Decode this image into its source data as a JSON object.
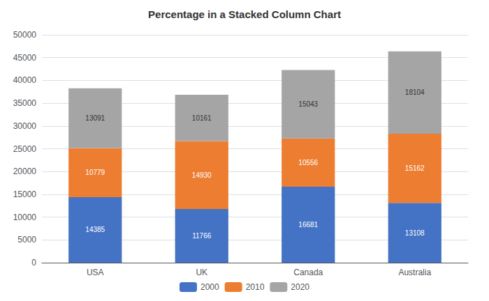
{
  "chart_data": {
    "type": "bar",
    "title": "Percentage in a Stacked Column Chart",
    "categories": [
      "USA",
      "UK",
      "Canada",
      "Australia"
    ],
    "series": [
      {
        "name": "2000",
        "color": "#4472C4",
        "values": [
          14385,
          11766,
          16681,
          13108
        ]
      },
      {
        "name": "2010",
        "color": "#ED7D31",
        "values": [
          10779,
          14930,
          10556,
          15162
        ]
      },
      {
        "name": "2020",
        "color": "#A5A5A5",
        "values": [
          13091,
          10161,
          15043,
          18104
        ]
      }
    ],
    "stacked": true,
    "data_labels": true,
    "ylim": [
      0,
      50000
    ],
    "yticks": [
      0,
      5000,
      10000,
      15000,
      20000,
      25000,
      30000,
      35000,
      40000,
      45000,
      50000
    ],
    "grid": true,
    "legend": "bottom"
  }
}
